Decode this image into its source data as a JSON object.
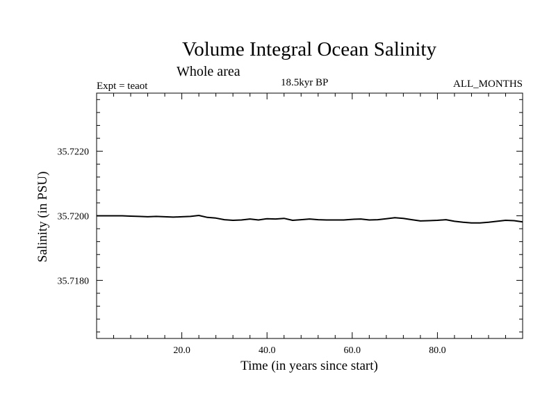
{
  "chart_data": {
    "type": "line",
    "title": "Volume Integral Ocean Salinity",
    "subtitle": "Whole area",
    "experiment": "Expt = teaot",
    "period": "18.5kyr BP",
    "months": "ALL_MONTHS",
    "xlabel": "Time (in years since start)",
    "ylabel": "Salinity (in PSU)",
    "xlim": [
      0,
      100
    ],
    "ylim": [
      35.7162,
      35.7238
    ],
    "xticks": [
      20,
      40,
      60,
      80
    ],
    "xtick_labels": [
      "20.0",
      "40.0",
      "60.0",
      "80.0"
    ],
    "yticks": [
      35.718,
      35.72,
      35.722
    ],
    "ytick_labels": [
      "35.7180",
      "35.7200",
      "35.7220"
    ],
    "series": [
      {
        "name": "salinity",
        "x": [
          0,
          2,
          4,
          6,
          8,
          10,
          12,
          14,
          16,
          18,
          20,
          22,
          24,
          26,
          28,
          30,
          32,
          34,
          36,
          38,
          40,
          42,
          44,
          46,
          48,
          50,
          52,
          54,
          56,
          58,
          60,
          62,
          64,
          66,
          68,
          70,
          72,
          74,
          76,
          78,
          80,
          82,
          84,
          86,
          88,
          90,
          92,
          94,
          96,
          98,
          100
        ],
        "values": [
          35.72,
          35.72,
          35.72,
          35.72,
          35.71999,
          35.71998,
          35.71997,
          35.71998,
          35.71997,
          35.71996,
          35.71997,
          35.71998,
          35.72001,
          35.71995,
          35.71993,
          35.71988,
          35.71986,
          35.71987,
          35.7199,
          35.71987,
          35.71991,
          35.7199,
          35.71992,
          35.71986,
          35.71988,
          35.7199,
          35.71988,
          35.71987,
          35.71987,
          35.71987,
          35.71989,
          35.7199,
          35.71987,
          35.71988,
          35.71991,
          35.71994,
          35.71992,
          35.71988,
          35.71984,
          35.71985,
          35.71986,
          35.71988,
          35.71983,
          35.7198,
          35.71978,
          35.71978,
          35.7198,
          35.71983,
          35.71986,
          35.71985,
          35.71981
        ]
      }
    ]
  }
}
